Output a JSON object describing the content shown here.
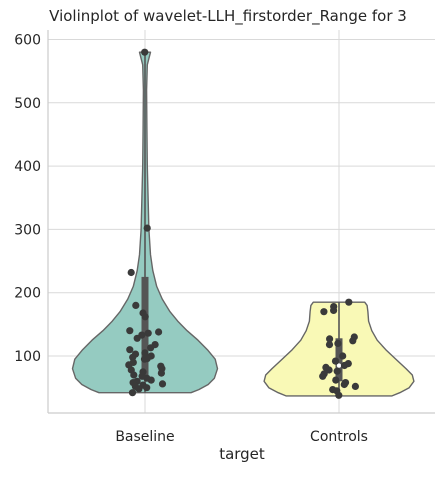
{
  "chart_data": {
    "type": "violin",
    "title": "Violinplot of wavelet-LLH_firstorder_Range for 3",
    "xlabel": "target",
    "ylabel": "",
    "categories": [
      "Baseline",
      "Controls"
    ],
    "ylim": [
      10,
      615
    ],
    "yticks": [
      100,
      200,
      300,
      400,
      500,
      600
    ],
    "grid": true,
    "colors": {
      "Baseline": "#95cbc1",
      "Controls": "#f9f9b6",
      "violin_edge": "#666666",
      "points": "#3a3a3a",
      "box": "#555555",
      "grid": "#d9d9d9",
      "axes": "#cccccc"
    },
    "series": [
      {
        "category": "Baseline",
        "violin_range": [
          42,
          580
        ],
        "box": {
          "q1": 68,
          "median": 95,
          "q3": 225
        },
        "points": [
          580,
          302,
          232,
          180,
          168,
          162,
          140,
          138,
          136,
          133,
          128,
          118,
          113,
          110,
          105,
          103,
          100,
          98,
          96,
          95,
          90,
          86,
          84,
          80,
          78,
          75,
          73,
          70,
          68,
          65,
          62,
          60,
          58,
          56,
          54,
          52,
          50,
          48,
          42
        ],
        "density": [
          {
            "y": 42,
            "w": 0.59
          },
          {
            "y": 47,
            "w": 0.69
          },
          {
            "y": 55,
            "w": 0.81
          },
          {
            "y": 65,
            "w": 0.89
          },
          {
            "y": 80,
            "w": 0.93
          },
          {
            "y": 95,
            "w": 0.9
          },
          {
            "y": 110,
            "w": 0.8
          },
          {
            "y": 125,
            "w": 0.68
          },
          {
            "y": 140,
            "w": 0.54
          },
          {
            "y": 155,
            "w": 0.42
          },
          {
            "y": 170,
            "w": 0.32
          },
          {
            "y": 190,
            "w": 0.22
          },
          {
            "y": 210,
            "w": 0.15
          },
          {
            "y": 235,
            "w": 0.1
          },
          {
            "y": 260,
            "w": 0.07
          },
          {
            "y": 300,
            "w": 0.05
          },
          {
            "y": 350,
            "w": 0.04
          },
          {
            "y": 400,
            "w": 0.03
          },
          {
            "y": 460,
            "w": 0.025
          },
          {
            "y": 520,
            "w": 0.02
          },
          {
            "y": 560,
            "w": 0.03
          },
          {
            "y": 580,
            "w": 0.07
          }
        ]
      },
      {
        "category": "Controls",
        "violin_range": [
          37,
          185
        ],
        "box": {
          "q1": 60,
          "median": 85,
          "q3": 128
        },
        "points": [
          185,
          178,
          172,
          170,
          130,
          127,
          124,
          120,
          118,
          100,
          92,
          88,
          85,
          82,
          78,
          76,
          72,
          68,
          62,
          58,
          55,
          52,
          47,
          45,
          38
        ],
        "density": [
          {
            "y": 37,
            "w": 0.68
          },
          {
            "y": 42,
            "w": 0.78
          },
          {
            "y": 50,
            "w": 0.9
          },
          {
            "y": 60,
            "w": 0.96
          },
          {
            "y": 70,
            "w": 0.94
          },
          {
            "y": 80,
            "w": 0.86
          },
          {
            "y": 95,
            "w": 0.73
          },
          {
            "y": 110,
            "w": 0.6
          },
          {
            "y": 125,
            "w": 0.49
          },
          {
            "y": 140,
            "w": 0.42
          },
          {
            "y": 155,
            "w": 0.38
          },
          {
            "y": 170,
            "w": 0.37
          },
          {
            "y": 180,
            "w": 0.36
          },
          {
            "y": 185,
            "w": 0.33
          }
        ]
      }
    ]
  }
}
